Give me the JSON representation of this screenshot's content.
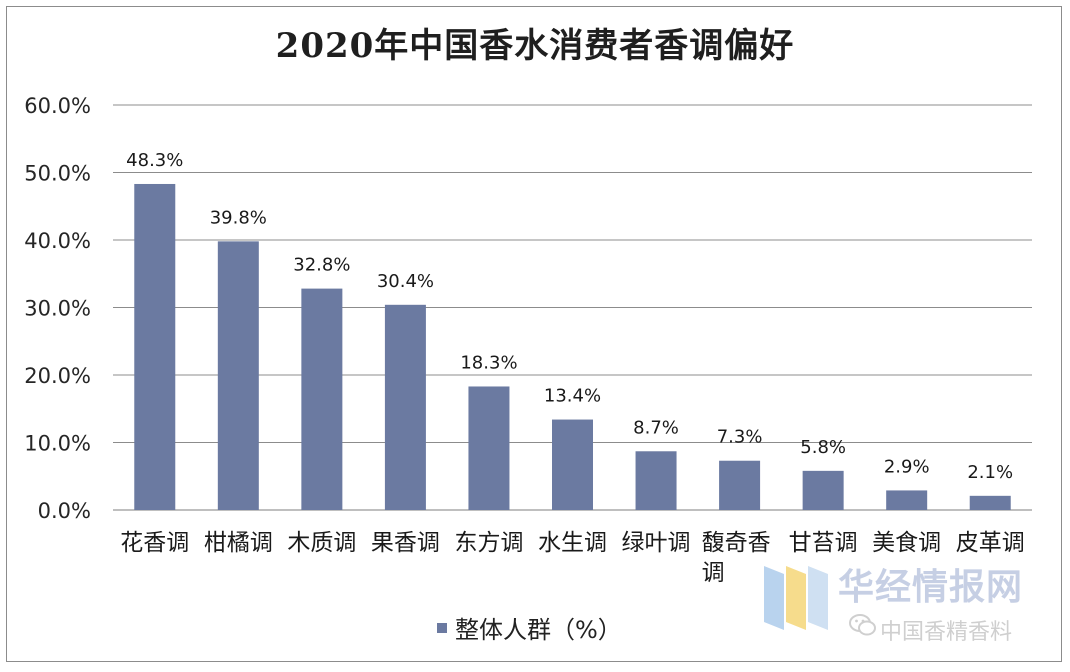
{
  "chart_data": {
    "type": "bar",
    "title": "2020年中国香水消费者香调偏好",
    "categories": [
      "花香调",
      "柑橘调",
      "木质调",
      "果香调",
      "东方调",
      "水生调",
      "绿叶调",
      "馥奇香调",
      "甘苔调",
      "美食调",
      "皮革调"
    ],
    "category_lines": [
      [
        "花香调"
      ],
      [
        "柑橘调"
      ],
      [
        "木质调"
      ],
      [
        "果香调"
      ],
      [
        "东方调"
      ],
      [
        "水生调"
      ],
      [
        "绿叶调"
      ],
      [
        "馥奇香",
        "调"
      ],
      [
        "甘苔调"
      ],
      [
        "美食调"
      ],
      [
        "皮革调"
      ]
    ],
    "series": [
      {
        "name": "整体人群（%）",
        "values": [
          48.3,
          39.8,
          32.8,
          30.4,
          18.3,
          13.4,
          8.7,
          7.3,
          5.8,
          2.9,
          2.1
        ]
      }
    ],
    "data_labels": [
      "48.3%",
      "39.8%",
      "32.8%",
      "30.4%",
      "18.3%",
      "13.4%",
      "8.7%",
      "7.3%",
      "5.8%",
      "2.9%",
      "2.1%"
    ],
    "y_ticks": [
      0,
      10,
      20,
      30,
      40,
      50,
      60
    ],
    "y_tick_labels": [
      "0.0%",
      "10.0%",
      "20.0%",
      "30.0%",
      "40.0%",
      "50.0%",
      "60.0%"
    ],
    "ylim": [
      0,
      60
    ],
    "grid": true,
    "legend_position": "bottom-center",
    "bar_color": "#6b7aa1"
  },
  "legend": {
    "label": "整体人群（%）"
  },
  "watermark": {
    "site": "华经情报网",
    "account": "中国香精香料"
  }
}
